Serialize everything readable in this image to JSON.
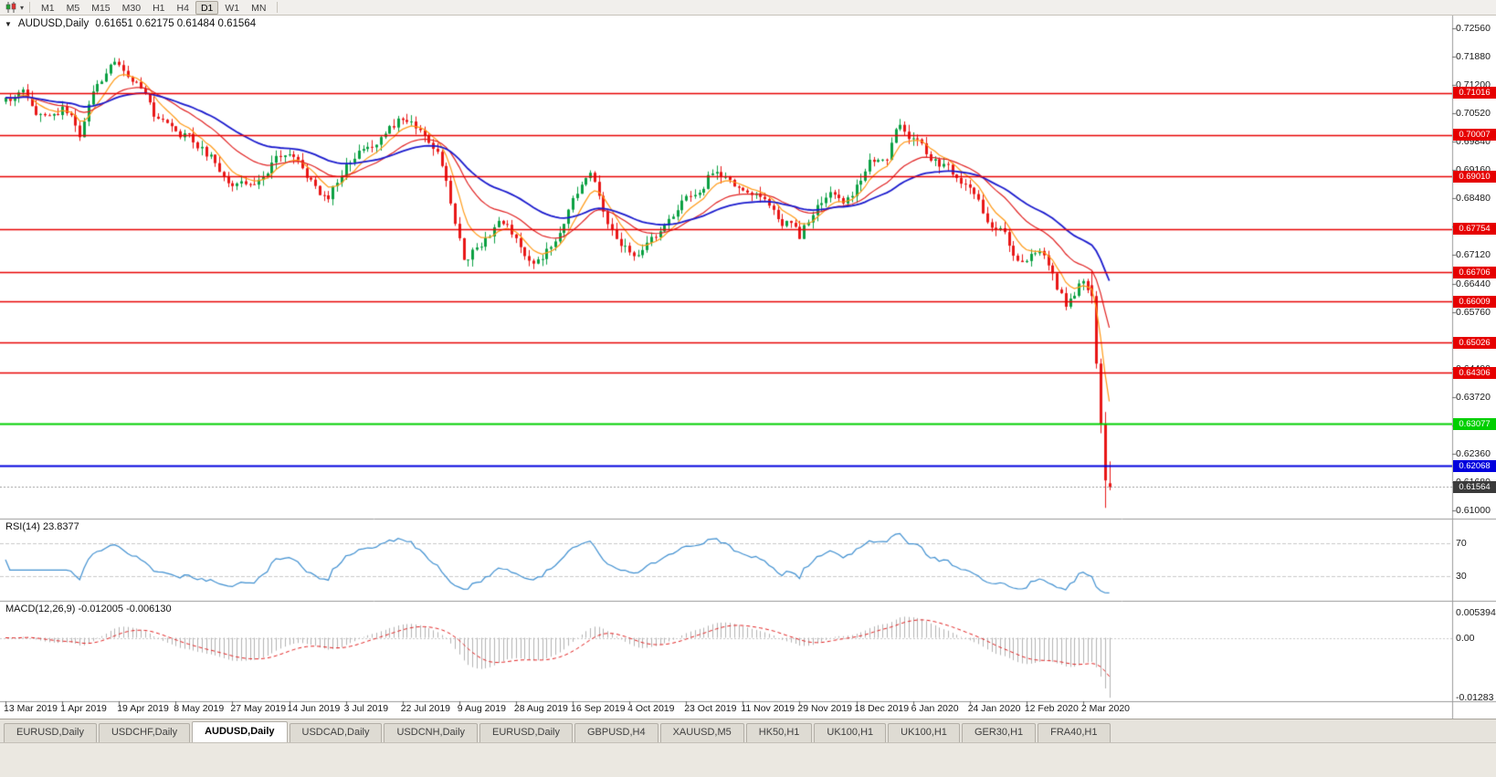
{
  "icons": {
    "collapse": "▼",
    "caret": "▾"
  },
  "toolbar": {
    "timeframes": [
      {
        "label": "M1",
        "active": false
      },
      {
        "label": "M5",
        "active": false
      },
      {
        "label": "M15",
        "active": false
      },
      {
        "label": "M30",
        "active": false
      },
      {
        "label": "H1",
        "active": false
      },
      {
        "label": "H4",
        "active": false
      },
      {
        "label": "D1",
        "active": true
      },
      {
        "label": "W1",
        "active": false
      },
      {
        "label": "MN",
        "active": false
      }
    ]
  },
  "chart": {
    "symbol_title": "AUDUSD,Daily",
    "ohlc_text": "0.61651 0.62175 0.61484 0.61564",
    "price_axis_labels": [
      "0.72560",
      "0.71880",
      "0.71200",
      "0.70520",
      "0.69840",
      "0.69160",
      "0.68480",
      "0.67800",
      "0.67120",
      "0.66440",
      "0.65760",
      "0.65080",
      "0.64400",
      "0.63720",
      "0.63040",
      "0.62360",
      "0.61680",
      "0.61000"
    ],
    "hlines": [
      {
        "value": 0.71016,
        "label": "0.71016",
        "color": "#e60000",
        "width": 1.3
      },
      {
        "value": 0.70007,
        "label": "0.70007",
        "color": "#e60000",
        "width": 1.3
      },
      {
        "value": 0.6901,
        "label": "0.69010",
        "color": "#e60000",
        "width": 1.3
      },
      {
        "value": 0.67754,
        "label": "0.67754",
        "color": "#e60000",
        "width": 1.3
      },
      {
        "value": 0.66706,
        "label": "0.66706",
        "color": "#e60000",
        "width": 1.3
      },
      {
        "value": 0.66009,
        "label": "0.66009",
        "color": "#e60000",
        "width": 1.3
      },
      {
        "value": 0.65026,
        "label": "0.65026",
        "color": "#e60000",
        "width": 1.3
      },
      {
        "value": 0.64306,
        "label": "0.64306",
        "color": "#e60000",
        "width": 1.3
      },
      {
        "value": 0.63077,
        "label": "0.63077",
        "color": "#00cf00",
        "width": 2
      },
      {
        "value": 0.62068,
        "label": "0.62068",
        "color": "#0000dd",
        "width": 2
      }
    ],
    "last_price_badge": {
      "value": 0.61564,
      "label": "0.61564",
      "color": "#3a3a3a"
    }
  },
  "rsi": {
    "title": "RSI(14) 23.8377",
    "color": "#3f8fd0",
    "levels": [
      {
        "value": 70,
        "label": "70"
      },
      {
        "value": 30,
        "label": "30"
      }
    ]
  },
  "macd": {
    "title": "MACD(12,26,9) -0.012005 -0.006130",
    "axis_labels": [
      {
        "value": 0.005394,
        "label": "0.005394"
      },
      {
        "value": 0,
        "label": "0.00"
      },
      {
        "value": -0.01283,
        "label": "-0.01283"
      }
    ]
  },
  "tabs": [
    {
      "label": "EURUSD,Daily",
      "active": false
    },
    {
      "label": "USDCHF,Daily",
      "active": false
    },
    {
      "label": "AUDUSD,Daily",
      "active": true
    },
    {
      "label": "USDCAD,Daily",
      "active": false
    },
    {
      "label": "USDCNH,Daily",
      "active": false
    },
    {
      "label": "EURUSD,Daily",
      "active": false
    },
    {
      "label": "GBPUSD,H4",
      "active": false
    },
    {
      "label": "XAUUSD,M5",
      "active": false
    },
    {
      "label": "HK50,H1",
      "active": false
    },
    {
      "label": "UK100,H1",
      "active": false
    },
    {
      "label": "UK100,H1",
      "active": false
    },
    {
      "label": "GER30,H1",
      "active": false
    },
    {
      "label": "FRA40,H1",
      "active": false
    }
  ],
  "chart_data": {
    "type": "candlestick",
    "symbol": "AUDUSD",
    "period": "Daily",
    "last_candle": {
      "open": 0.61651,
      "high": 0.62175,
      "low": 0.61484,
      "close": 0.61564
    },
    "y_axis": {
      "min": 0.61,
      "max": 0.7256,
      "tick_step": 0.0068
    },
    "x_axis_dates": [
      "13 Mar 2019",
      "1 Apr 2019",
      "19 Apr 2019",
      "8 May 2019",
      "27 May 2019",
      "14 Jun 2019",
      "3 Jul 2019",
      "22 Jul 2019",
      "9 Aug 2019",
      "28 Aug 2019",
      "16 Sep 2019",
      "4 Oct 2019",
      "23 Oct 2019",
      "11 Nov 2019",
      "29 Nov 2019",
      "18 Dec 2019",
      "6 Jan 2020",
      "24 Jan 2020",
      "12 Feb 2020",
      "2 Mar 2020"
    ],
    "candle_count": 254,
    "candles_per_label": 13,
    "price_waypoints": [
      [
        0,
        0.708
      ],
      [
        4,
        0.7102
      ],
      [
        9,
        0.7042
      ],
      [
        13,
        0.7072
      ],
      [
        17,
        0.7008
      ],
      [
        21,
        0.7122
      ],
      [
        25,
        0.7188
      ],
      [
        29,
        0.715
      ],
      [
        34,
        0.7048
      ],
      [
        39,
        0.7012
      ],
      [
        46,
        0.6958
      ],
      [
        52,
        0.6888
      ],
      [
        57,
        0.6868
      ],
      [
        61,
        0.6936
      ],
      [
        65,
        0.6958
      ],
      [
        70,
        0.688
      ],
      [
        74,
        0.6852
      ],
      [
        78,
        0.6928
      ],
      [
        85,
        0.699
      ],
      [
        91,
        0.704
      ],
      [
        95,
        0.7002
      ],
      [
        99,
        0.6945
      ],
      [
        102,
        0.6832
      ],
      [
        105,
        0.67
      ],
      [
        109,
        0.6744
      ],
      [
        113,
        0.678
      ],
      [
        117,
        0.6762
      ],
      [
        121,
        0.6696
      ],
      [
        125,
        0.673
      ],
      [
        128,
        0.6806
      ],
      [
        131,
        0.686
      ],
      [
        134,
        0.6886
      ],
      [
        138,
        0.6792
      ],
      [
        142,
        0.674
      ],
      [
        144,
        0.6702
      ],
      [
        148,
        0.6744
      ],
      [
        152,
        0.6794
      ],
      [
        156,
        0.6856
      ],
      [
        160,
        0.689
      ],
      [
        163,
        0.6928
      ],
      [
        167,
        0.6884
      ],
      [
        171,
        0.6858
      ],
      [
        175,
        0.6822
      ],
      [
        179,
        0.6792
      ],
      [
        182,
        0.6758
      ],
      [
        186,
        0.6826
      ],
      [
        189,
        0.686
      ],
      [
        192,
        0.6842
      ],
      [
        195,
        0.6882
      ],
      [
        198,
        0.693
      ],
      [
        202,
        0.6952
      ],
      [
        205,
        0.7028
      ],
      [
        208,
        0.699
      ],
      [
        211,
        0.696
      ],
      [
        214,
        0.693
      ],
      [
        218,
        0.6898
      ],
      [
        221,
        0.6866
      ],
      [
        225,
        0.6802
      ],
      [
        228,
        0.6772
      ],
      [
        231,
        0.6722
      ],
      [
        234,
        0.6692
      ],
      [
        237,
        0.6722
      ],
      [
        240,
        0.666
      ],
      [
        243,
        0.6592
      ],
      [
        245,
        0.6606
      ],
      [
        247,
        0.665
      ],
      [
        249,
        0.6614
      ]
    ],
    "final_candles_start": 249,
    "final_candles": [
      [
        0.664,
        0.6674,
        0.6596,
        0.6614
      ],
      [
        0.6614,
        0.6626,
        0.644,
        0.6452
      ],
      [
        0.6452,
        0.6464,
        0.6285,
        0.6306
      ],
      [
        0.6306,
        0.6336,
        0.6106,
        0.6172
      ],
      [
        0.61651,
        0.62175,
        0.61484,
        0.61564
      ]
    ],
    "moving_averages": [
      {
        "period": 7,
        "color": "#ff9915"
      },
      {
        "period": 20,
        "color": "#e02020"
      },
      {
        "period": 40,
        "color": "#1a1acd"
      }
    ],
    "indicators": {
      "rsi": {
        "period": 14,
        "current": 23.8377
      },
      "macd": {
        "fast": 12,
        "slow": 26,
        "signal": 9,
        "current_main": -0.012005,
        "current_signal": -0.00613
      }
    }
  }
}
